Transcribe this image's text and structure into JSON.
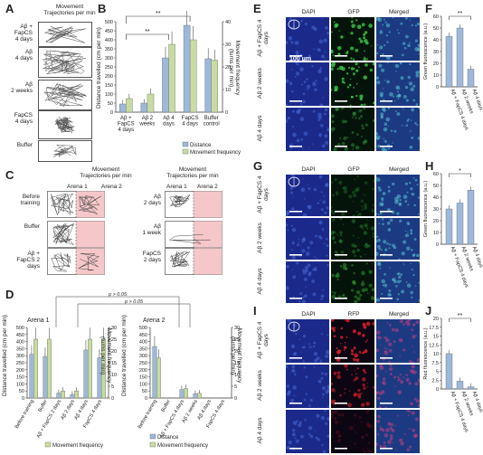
{
  "panelA": {
    "letter": "A",
    "title": "Movement\nTrajectories per min",
    "rows": [
      "Aβ +\nFapCS\n4 days",
      "Aβ\n4 days",
      "Aβ\n2 weeks",
      "FapCS\n4 days",
      "Buffer"
    ]
  },
  "panelB": {
    "letter": "B",
    "ylabel": "Distance travelled (cm per min)",
    "y2label": "Movement frequency\n(turns per min)",
    "sig": "**",
    "legend": [
      "Distance",
      "Movement frequency"
    ]
  },
  "panelC": {
    "letter": "C",
    "title": "Movement\nTrajectories per min",
    "arena1": "Arena 1",
    "arena2": "Arena 2",
    "left_rows": [
      "Before\ntraining",
      "Buffer",
      "Aβ +\nFapCS 2\ndays"
    ],
    "right_rows": [
      "Aβ\n2 days",
      "Aβ\n1 week",
      "FapCS\n2 days"
    ]
  },
  "panelD": {
    "letter": "D",
    "arena1": "Arena 1",
    "arena2": "Arena 2",
    "ylabel": "Distance travelled (cm per min)",
    "y2label": "Movement frequency\n(turns per min)",
    "p1": "p > 0.05",
    "p2": "p > 0.05",
    "legend": [
      "Distance",
      "Movement frequency"
    ]
  },
  "panelE": {
    "letter": "E",
    "cols": [
      "DAPI",
      "GFP",
      "Merged"
    ],
    "rows": [
      "Aβ +\nFapCS\n4 days",
      "Aβ 2 weeks",
      "Aβ 4 days"
    ],
    "scale": "100 μm"
  },
  "panelF": {
    "letter": "F",
    "ylabel": "Green fluorescence (a.u.)",
    "sig": "**"
  },
  "panelG": {
    "letter": "G",
    "cols": [
      "DAPI",
      "GFP",
      "Merged"
    ],
    "rows": [
      "Aβ +\nFapCS\n4 days",
      "Aβ 2 weeks",
      "Aβ 4 days"
    ]
  },
  "panelH": {
    "letter": "H",
    "ylabel": "Green fluorescence (a.u.)",
    "sig": "*"
  },
  "panelI": {
    "letter": "I",
    "cols": [
      "DAPI",
      "RFP",
      "Merged"
    ],
    "rows": [
      "Aβ +\nFapCS\n4 days",
      "Aβ 2 weeks",
      "Aβ 4 days"
    ]
  },
  "panelJ": {
    "letter": "J",
    "ylabel": "Red fluorescence (a.u.)",
    "sig": "**"
  },
  "colors": {
    "distance": "#9db8d9",
    "frequency": "#c9dba3",
    "pink": "#f5c7c9",
    "green": "#2f9e36",
    "blue": "#22307a",
    "red": "#c0202a"
  },
  "chart_data": [
    {
      "id": "B",
      "type": "bar",
      "categories": [
        "Aβ +\nFapCS\n4 days",
        "Aβ 2\nweeks",
        "Aβ 4\ndays",
        "FapCS\n4 days",
        "Buffer\ncontrol"
      ],
      "series": [
        {
          "name": "Distance",
          "values": [
            45,
            50,
            300,
            480,
            295
          ]
        },
        {
          "name": "Movement frequency",
          "values": [
            6,
            8,
            30,
            32,
            23
          ]
        }
      ],
      "ylim": [
        0,
        500
      ],
      "y2lim": [
        0,
        40
      ],
      "yticks": [
        0,
        50,
        100,
        150,
        200,
        250,
        300,
        350,
        400,
        450,
        500
      ],
      "y2ticks": [
        0,
        10,
        20,
        30,
        40
      ]
    },
    {
      "id": "D1",
      "type": "bar",
      "categories": [
        "Before training",
        "Buffer",
        "Aβ + FapCS 2 days",
        "Aβ 2 days",
        "Aβ 4 days",
        "FapCS 4 days"
      ],
      "series": [
        {
          "name": "Distance",
          "values": [
            310,
            295,
            35,
            25,
            340,
            285
          ]
        },
        {
          "name": "Movement frequency",
          "values": [
            25,
            25,
            3,
            3,
            25,
            25
          ]
        }
      ],
      "ylim": [
        0,
        500
      ],
      "y2lim": [
        0,
        30
      ],
      "yticks": [
        0,
        50,
        100,
        150,
        200,
        250,
        300,
        350,
        400,
        450,
        500
      ],
      "y2ticks": [
        0,
        5,
        10,
        15,
        20,
        25,
        30
      ]
    },
    {
      "id": "D2",
      "type": "bar",
      "categories": [
        "Before training",
        "Buffer",
        "Aβ + FapCS 4 days",
        "Aβ 2 weeks",
        "Aβ 4 days",
        "FapCS 4 days"
      ],
      "series": [
        {
          "name": "Distance",
          "values": [
            365,
            0,
            60,
            30,
            0,
            0
          ]
        },
        {
          "name": "Movement frequency",
          "values": [
            17,
            0,
            4,
            2,
            0,
            0
          ]
        }
      ],
      "ylim": [
        0,
        500
      ],
      "y2lim": [
        0,
        30
      ],
      "yticks": [
        0,
        50,
        100,
        150,
        200,
        250,
        300,
        350,
        400,
        450,
        500
      ],
      "y2ticks": [
        0,
        5,
        10,
        15,
        20,
        25,
        30
      ]
    },
    {
      "id": "F",
      "type": "bar",
      "categories": [
        "Aβ + FapCS 4 days",
        "Aβ 2 weeks",
        "Aβ 4 days"
      ],
      "series": [
        {
          "name": "Green fluorescence",
          "values": [
            43,
            50,
            15
          ]
        }
      ],
      "ylim": [
        0,
        60
      ],
      "yticks": [
        0,
        10,
        20,
        30,
        40,
        50,
        60
      ]
    },
    {
      "id": "H",
      "type": "bar",
      "categories": [
        "Aβ + FapCS 4 days",
        "Aβ 2 weeks",
        "Aβ 4 days"
      ],
      "series": [
        {
          "name": "Green fluorescence",
          "values": [
            30,
            35,
            46
          ]
        }
      ],
      "ylim": [
        0,
        60
      ],
      "yticks": [
        0,
        10,
        20,
        30,
        40,
        50,
        60
      ]
    },
    {
      "id": "J",
      "type": "bar",
      "categories": [
        "Aβ + FapCS 4 days",
        "Aβ 2 weeks",
        "Aβ 4 days"
      ],
      "series": [
        {
          "name": "Red fluorescence",
          "values": [
            10,
            2.2,
            0.6
          ]
        }
      ],
      "ylim": [
        0,
        20
      ],
      "yticks": [
        0,
        2.5,
        5,
        7.5,
        10,
        12.5,
        15,
        17.5,
        20
      ]
    }
  ]
}
